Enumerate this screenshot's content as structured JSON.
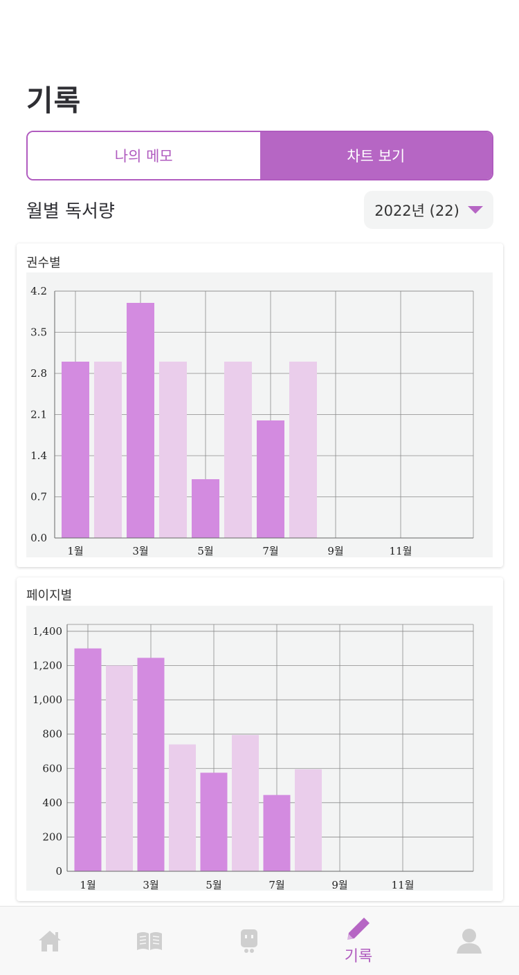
{
  "header": {
    "title": "기록"
  },
  "segmented": {
    "memo_label": "나의 메모",
    "chart_label": "차트 보기"
  },
  "section": {
    "title": "월별 독서량"
  },
  "year_select": {
    "value": "2022년 (22)"
  },
  "charts": {
    "books": {
      "title": "권수별"
    },
    "pages": {
      "title": "페이지별"
    }
  },
  "colors": {
    "accent": "#b666c4",
    "bar_dark": "#d38be0",
    "bar_light": "#eacdeb",
    "plot_bg": "#f3f4f4"
  },
  "chart_data": [
    {
      "type": "bar",
      "title": "권수별",
      "categories": [
        "1월",
        "2월",
        "3월",
        "4월",
        "5월",
        "6월",
        "7월",
        "8월",
        "9월",
        "10월",
        "11월",
        "12월"
      ],
      "tick_labels": [
        "1월",
        "",
        "3월",
        "",
        "5월",
        "",
        "7월",
        "",
        "9월",
        "",
        "11월",
        ""
      ],
      "values": [
        3,
        3,
        4,
        3,
        1,
        3,
        2,
        3,
        0,
        0,
        0,
        0
      ],
      "yticks": [
        "0.0",
        "0.7",
        "1.4",
        "2.1",
        "2.8",
        "3.5",
        "4.2"
      ],
      "ylim": [
        0,
        4.2
      ],
      "grid": true
    },
    {
      "type": "bar",
      "title": "페이지별",
      "categories": [
        "1월",
        "2월",
        "3월",
        "4월",
        "5월",
        "6월",
        "7월",
        "8월",
        "9월",
        "10월",
        "11월",
        "12월"
      ],
      "tick_labels": [
        "1월",
        "",
        "3월",
        "",
        "5월",
        "",
        "7월",
        "",
        "9월",
        "",
        "11월",
        ""
      ],
      "values": [
        1300,
        1200,
        1245,
        740,
        575,
        795,
        445,
        595,
        0,
        0,
        0,
        0
      ],
      "yticks": [
        "0",
        "200",
        "400",
        "600",
        "800",
        "1,000",
        "1,200",
        "1,400"
      ],
      "ylim": [
        0,
        1440
      ],
      "grid": true
    }
  ],
  "tabbar": {
    "items": [
      {
        "icon": "home-icon"
      },
      {
        "icon": "book-icon"
      },
      {
        "icon": "robot-icon"
      },
      {
        "icon": "pencil-icon",
        "label": "기록"
      },
      {
        "icon": "user-icon"
      }
    ]
  }
}
